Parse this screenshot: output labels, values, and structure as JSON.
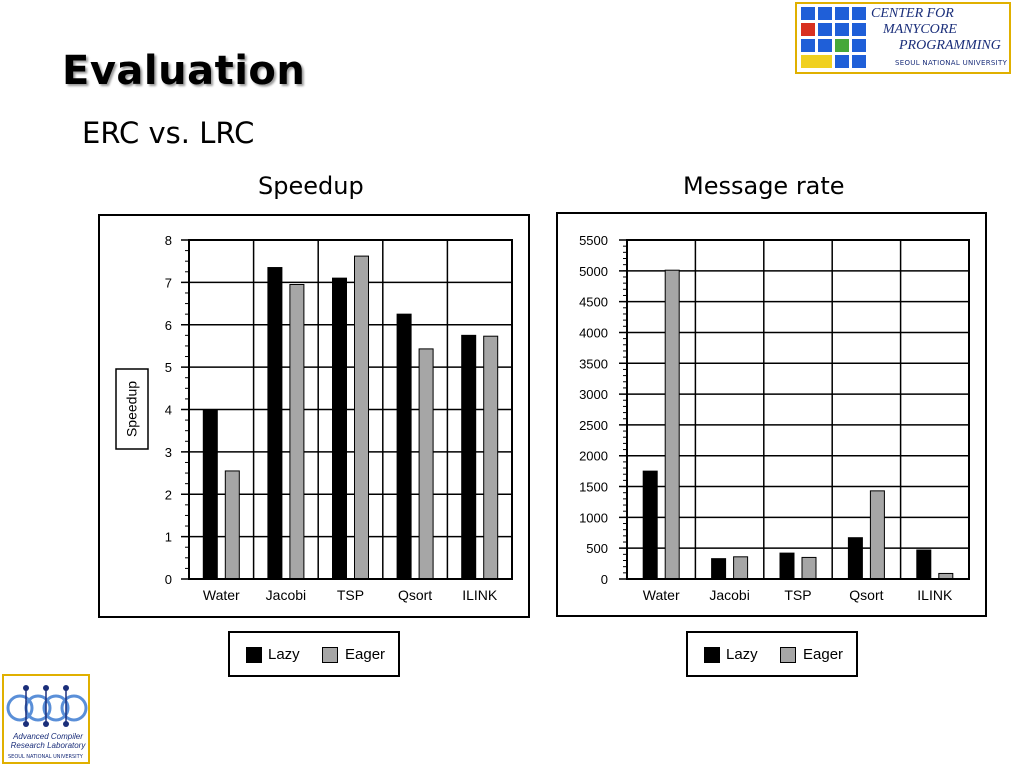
{
  "slide": {
    "title": "Evaluation",
    "subtitle": "ERC vs. LRC",
    "logo_top_right": {
      "line1": "Center for",
      "line2": "Manycore",
      "line3": "Programming",
      "university": "SEOUL NATIONAL UNIVERSITY"
    },
    "logo_bottom_left": {
      "name_line1": "Advanced Compiler",
      "name_line2": "Research Laboratory",
      "university": "SEOUL NATIONAL UNIVERSITY"
    }
  },
  "legend": {
    "lazy": "Lazy",
    "eager": "Eager"
  },
  "colors": {
    "lazy": "#000000",
    "eager": "#a6a6a6"
  },
  "chart_data": [
    {
      "type": "bar",
      "caption": "Speedup",
      "title": "",
      "xlabel": "",
      "ylabel": "Speedup",
      "categories": [
        "Water",
        "Jacobi",
        "TSP",
        "Qsort",
        "ILINK"
      ],
      "series": [
        {
          "name": "Lazy",
          "values": [
            4.0,
            7.35,
            7.1,
            6.25,
            5.75
          ]
        },
        {
          "name": "Eager",
          "values": [
            2.55,
            6.95,
            7.62,
            5.43,
            5.73
          ]
        }
      ],
      "ylim": [
        0,
        8
      ],
      "yticks": [
        "0",
        "1",
        "2",
        "3",
        "4",
        "5",
        "6",
        "7",
        "8"
      ],
      "grid": true,
      "legend_position": "bottom"
    },
    {
      "type": "bar",
      "caption": "Message rate",
      "title": "",
      "xlabel": "",
      "ylabel": "",
      "categories": [
        "Water",
        "Jacobi",
        "TSP",
        "Qsort",
        "ILINK"
      ],
      "series": [
        {
          "name": "Lazy",
          "values": [
            1750,
            330,
            420,
            670,
            470
          ]
        },
        {
          "name": "Eager",
          "values": [
            5010,
            360,
            350,
            1430,
            90
          ]
        }
      ],
      "ylim": [
        0,
        5500
      ],
      "yticks": [
        "0",
        "500",
        "1000",
        "1500",
        "2000",
        "2500",
        "3000",
        "3500",
        "4000",
        "4500",
        "5000",
        "5500"
      ],
      "grid": true,
      "legend_position": "bottom"
    }
  ]
}
